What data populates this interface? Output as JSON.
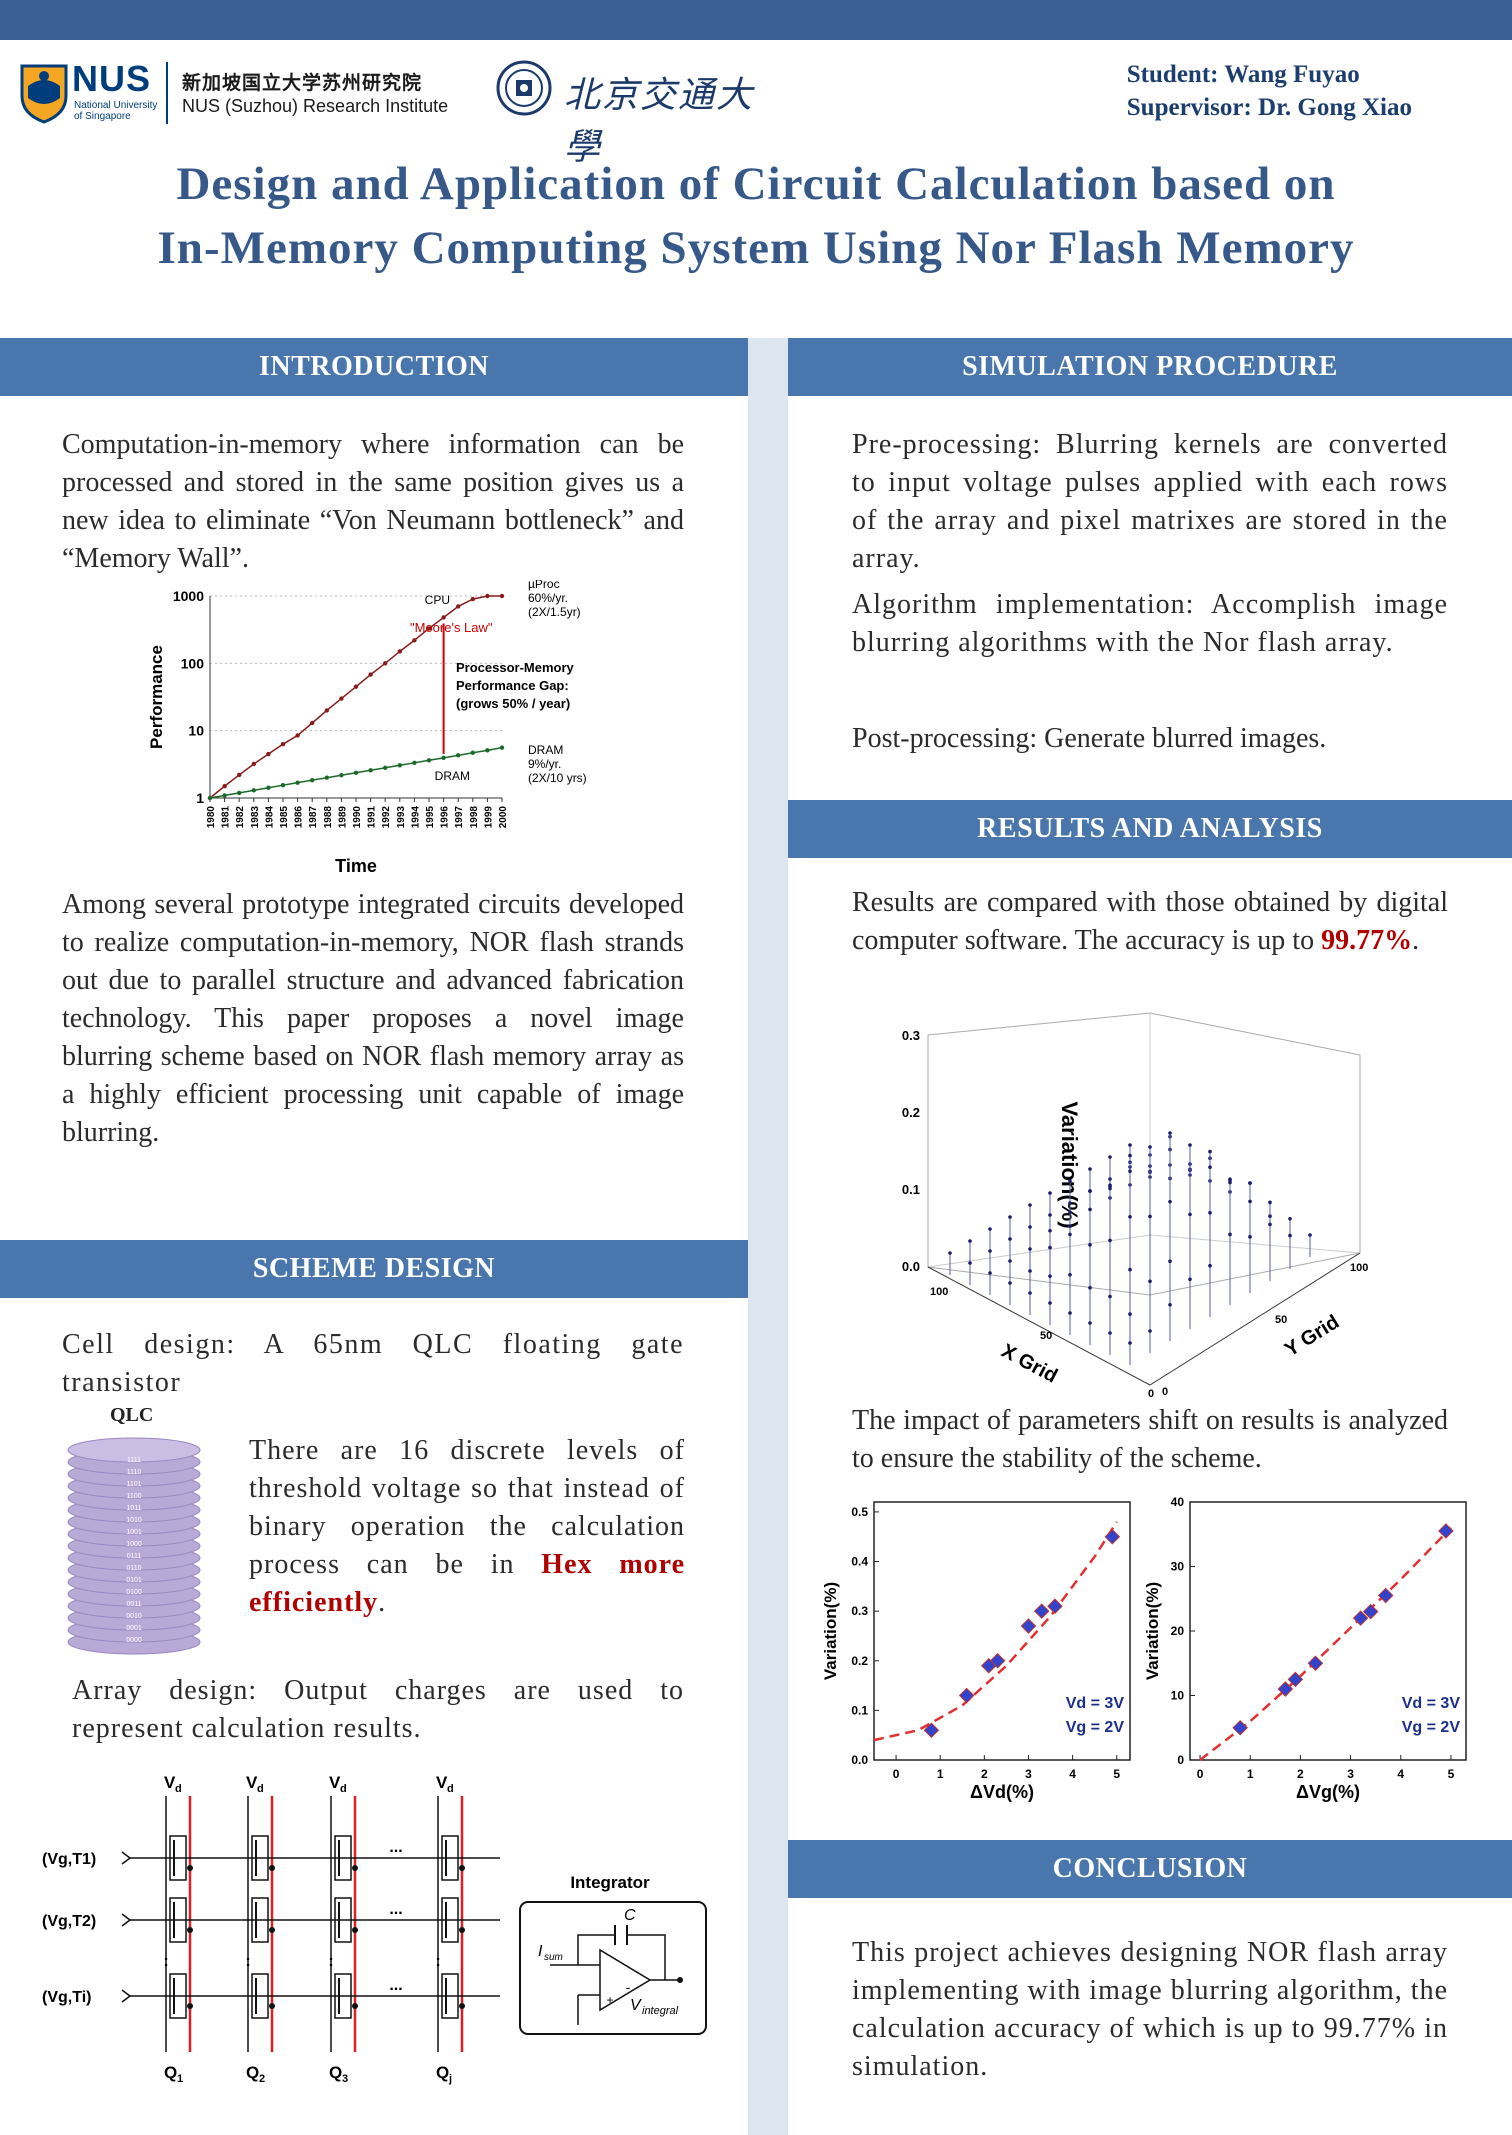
{
  "header": {
    "nus_word": "NUS",
    "nus_sub1": "National University",
    "nus_sub2": "of Singapore",
    "nus_cn": "新加坡国立大学苏州研究院",
    "nus_en": "NUS (Suzhou) Research Institute",
    "pku_text": "北京交通大學",
    "student": "Student: Wang Fuyao",
    "supervisor": "Supervisor: Dr. Gong Xiao",
    "title_line1": "Design and Application of Circuit Calculation based on",
    "title_line2": "In-Memory Computing System Using Nor Flash Memory"
  },
  "intro": {
    "heading": "INTRODUCTION",
    "p1": "Computation-in-memory where information can be processed and stored in the same position gives us a new idea to eliminate “Von Neumann bottleneck” and “Memory Wall”.",
    "p2": "Among several prototype integrated circuits developed to realize computation-in-memory, NOR flash strands out due to parallel structure and advanced fabrication technology. This paper proposes a novel image blurring scheme based on NOR flash memory array as a highly efficient processing unit capable of image blurring."
  },
  "scheme": {
    "heading": "SCHEME DESIGN",
    "cell": "Cell design: A 65nm QLC floating gate transistor",
    "qlc_label": "QLC",
    "qlc_codes": [
      "1111",
      "1110",
      "1101",
      "1100",
      "1011",
      "1010",
      "1001",
      "1000",
      "0111",
      "0110",
      "0101",
      "0100",
      "0011",
      "0010",
      "0001",
      "0000"
    ],
    "levels_text": "There are 16 discrete levels of threshold voltage so that instead of binary operation the calculation process can be in ",
    "levels_red": "Hex more efficiently",
    "levels_end": ".",
    "array": "Array design: Output charges are used to represent calculation results.",
    "vd": "V",
    "vd_sub": "d",
    "rows": [
      "(V",
      "(V",
      "(V"
    ],
    "row_labels": [
      [
        "g",
        "T",
        "1"
      ],
      [
        "g",
        "T",
        "2"
      ],
      [
        "g",
        "T",
        "i"
      ]
    ],
    "q_labels": [
      [
        "Q",
        "1"
      ],
      [
        "Q",
        "2"
      ],
      [
        "Q",
        "3"
      ],
      [
        "Q",
        "j"
      ]
    ],
    "integrator": "Integrator",
    "isum": "I",
    "isum_sub": "sum",
    "cap": "C",
    "vint": "V",
    "vint_sub": "integral",
    "dots": "..."
  },
  "sim": {
    "heading": "SIMULATION PROCEDURE",
    "p1": "Pre-processing: Blurring kernels are converted to input voltage pulses applied with each rows of the array and pixel matrixes are stored in the array.",
    "p2": "Algorithm implementation: Accomplish image blurring algorithms with the Nor flash array.",
    "p3": "Post-processing: Generate blurred images."
  },
  "results": {
    "heading": "RESULTS AND ANALYSIS",
    "p1_pre": "Results are compared with those obtained by digital computer software. The accuracy is up to ",
    "p1_red": "99.77%",
    "p1_end": ".",
    "p2": "The impact of parameters shift on results is analyzed to ensure the stability of the scheme."
  },
  "conclusion": {
    "heading": "CONCLUSION",
    "p1": "This project achieves designing NOR flash array implementing with image blurring algorithm, the calculation accuracy of which is up to 99.77% in simulation."
  },
  "chart_data": [
    {
      "type": "line",
      "xlabel": "Time",
      "ylabel": "Performance",
      "yscale": "log",
      "ylim": [
        1,
        1000
      ],
      "x": [
        1980,
        1981,
        1982,
        1983,
        1984,
        1985,
        1986,
        1987,
        1988,
        1989,
        1990,
        1991,
        1992,
        1993,
        1994,
        1995,
        1996,
        1997,
        1998,
        1999,
        2000
      ],
      "series": [
        {
          "name": "CPU",
          "values": [
            1,
            1.5,
            2.2,
            3.2,
            4.5,
            6.3,
            8.5,
            13,
            20,
            30,
            45,
            68,
            100,
            150,
            220,
            330,
            480,
            700,
            900,
            1000,
            1000
          ]
        },
        {
          "name": "DRAM",
          "values": [
            1,
            1.09,
            1.19,
            1.3,
            1.42,
            1.55,
            1.69,
            1.84,
            2.0,
            2.18,
            2.37,
            2.58,
            2.81,
            3.06,
            3.33,
            3.63,
            3.95,
            4.3,
            4.7,
            5.1,
            5.6
          ]
        }
      ],
      "annotations": [
        "µProc",
        "60%/yr.",
        "(2X/1.5yr)",
        "\"Moore's Law\"",
        "Processor-Memory",
        "Performance Gap:",
        "(grows 50% / year)",
        "DRAM",
        "9%/yr.",
        "(2X/10 yrs)"
      ],
      "yticks": [
        "1",
        "10",
        "100",
        "1000"
      ]
    },
    {
      "type": "scatter",
      "title": "",
      "xlabel": "X Grid",
      "ylabel": "Y Grid",
      "zlabel": "Variation(%)",
      "zlim": [
        0,
        0.3
      ],
      "zticks": [
        "0.0",
        "0.1",
        "0.2",
        "0.3"
      ],
      "xticks": [
        "0",
        "50",
        "100"
      ],
      "yticks": [
        "0",
        "50",
        "100"
      ]
    },
    {
      "type": "scatter",
      "xlabel": "ΔVd(%)",
      "ylabel": "Variation(%)",
      "xlim": [
        -0.5,
        5.3
      ],
      "ylim": [
        0,
        0.52
      ],
      "xticks": [
        "0",
        "1",
        "2",
        "3",
        "4",
        "5"
      ],
      "yticks": [
        "0.0",
        "0.1",
        "0.2",
        "0.3",
        "0.4",
        "0.5"
      ],
      "points": [
        [
          0.8,
          0.06
        ],
        [
          1.6,
          0.13
        ],
        [
          2.1,
          0.19
        ],
        [
          2.3,
          0.2
        ],
        [
          3.0,
          0.27
        ],
        [
          3.3,
          0.3
        ],
        [
          3.6,
          0.31
        ],
        [
          4.9,
          0.45
        ]
      ],
      "legend": [
        "Vd = 3V",
        "Vg = 2V"
      ]
    },
    {
      "type": "scatter",
      "xlabel": "ΔVg(%)",
      "ylabel": "Variation(%)",
      "xlim": [
        -0.2,
        5.3
      ],
      "ylim": [
        0,
        40
      ],
      "xticks": [
        "0",
        "1",
        "2",
        "3",
        "4",
        "5"
      ],
      "yticks": [
        "0",
        "10",
        "20",
        "30",
        "40"
      ],
      "points": [
        [
          0.8,
          5
        ],
        [
          1.7,
          11
        ],
        [
          1.9,
          12.5
        ],
        [
          2.3,
          15
        ],
        [
          3.2,
          22
        ],
        [
          3.4,
          23
        ],
        [
          3.7,
          25.5
        ],
        [
          4.9,
          35.5
        ]
      ],
      "legend": [
        "Vd = 3V",
        "Vg = 2V"
      ]
    }
  ]
}
